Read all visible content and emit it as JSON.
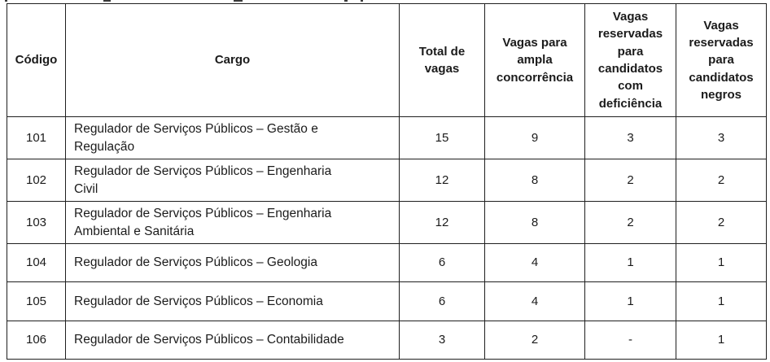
{
  "colors": {
    "background": "#ffffff",
    "border": "#1f1f1f",
    "text": "#1b1b1b"
  },
  "table": {
    "columns": [
      {
        "key": "codigo",
        "label": "Código"
      },
      {
        "key": "cargo",
        "label": "Cargo"
      },
      {
        "key": "total",
        "label": "Total de\nvagas"
      },
      {
        "key": "ampla",
        "label": "Vagas para\nampla\nconcorrência"
      },
      {
        "key": "deficiencia",
        "label": "Vagas\nreservadas\npara\ncandidatos\ncom\ndeficiência"
      },
      {
        "key": "negros",
        "label": "Vagas\nreservadas\npara\ncandidatos\nnegros"
      }
    ],
    "rows": [
      {
        "codigo": "101",
        "cargo": "Regulador de Serviços Públicos – Gestão e\nRegulação",
        "total": "15",
        "ampla": "9",
        "deficiencia": "3",
        "negros": "3"
      },
      {
        "codigo": "102",
        "cargo": "Regulador de Serviços Públicos – Engenharia\nCivil",
        "total": "12",
        "ampla": "8",
        "deficiencia": "2",
        "negros": "2"
      },
      {
        "codigo": "103",
        "cargo": "Regulador de Serviços Públicos – Engenharia\nAmbiental e Sanitária",
        "total": "12",
        "ampla": "8",
        "deficiencia": "2",
        "negros": "2"
      },
      {
        "codigo": "104",
        "cargo": "Regulador de Serviços Públicos – Geologia",
        "total": "6",
        "ampla": "4",
        "deficiencia": "1",
        "negros": "1"
      },
      {
        "codigo": "105",
        "cargo": "Regulador de Serviços Públicos – Economia",
        "total": "6",
        "ampla": "4",
        "deficiencia": "1",
        "negros": "1"
      },
      {
        "codigo": "106",
        "cargo": "Regulador de Serviços Públicos – Contabilidade",
        "total": "3",
        "ampla": "2",
        "deficiencia": "-",
        "negros": "1"
      }
    ]
  }
}
